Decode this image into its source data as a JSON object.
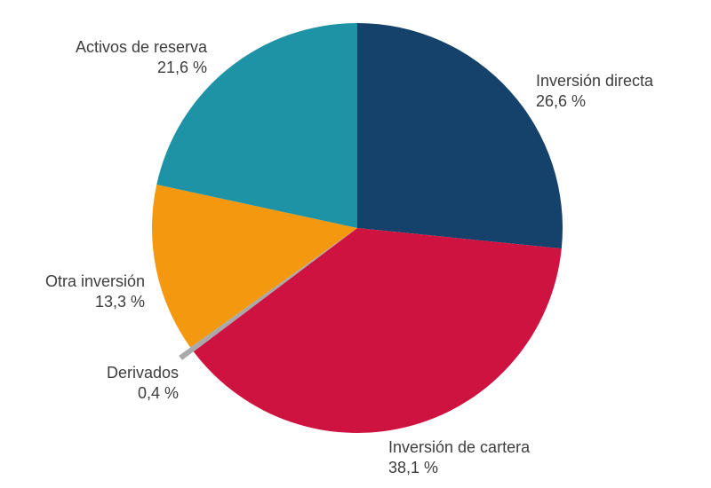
{
  "chart_data": {
    "type": "pie",
    "title": "",
    "unit": "%",
    "decimal_separator": ",",
    "start_angle_deg": 0,
    "direction": "clockwise",
    "legend_position": "labels-around-pie",
    "slices": [
      {
        "label": "Inversión directa",
        "value": 26.6,
        "value_label": "26,6 %",
        "color": "#15426b",
        "exploded": false
      },
      {
        "label": "Inversión de cartera",
        "value": 38.1,
        "value_label": "38,1 %",
        "color": "#ce1340",
        "exploded": false
      },
      {
        "label": "Derivados",
        "value": 0.4,
        "value_label": "0,4 %",
        "color": "#a8a9aa",
        "exploded": true
      },
      {
        "label": "Otra inversión",
        "value": 13.3,
        "value_label": "13,3 %",
        "color": "#f4990f",
        "exploded": false
      },
      {
        "label": "Activos de reserva",
        "value": 21.6,
        "value_label": "21,6 %",
        "color": "#1e93a5",
        "exploded": false
      }
    ],
    "colors": {
      "text": "#3d3d3d",
      "background": "#ffffff"
    }
  }
}
